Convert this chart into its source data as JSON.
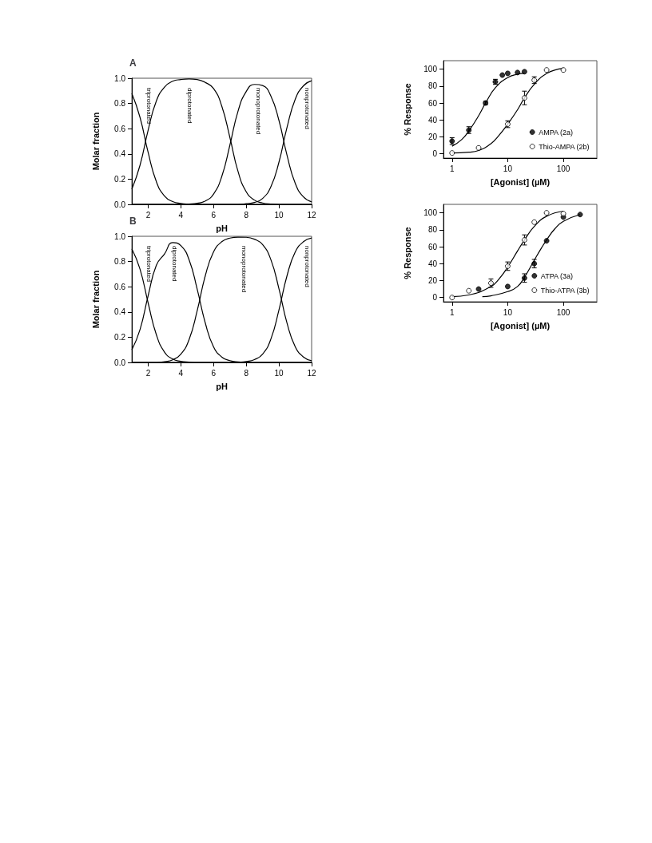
{
  "chart_data": [
    {
      "type": "line",
      "title": "A",
      "xlabel": "pH",
      "ylabel": "Molar fraction",
      "marker": "none",
      "grid": false,
      "legend": false,
      "x": [
        1,
        1.5,
        2,
        2.5,
        3,
        3.5,
        4,
        4.5,
        5,
        5.5,
        6,
        6.5,
        7,
        7.5,
        8,
        8.5,
        9,
        9.5,
        10,
        10.5,
        11,
        11.5,
        12
      ],
      "xlim": [
        1,
        12
      ],
      "xticks": [
        2,
        4,
        6,
        8,
        10,
        12
      ],
      "ylim": [
        0,
        1
      ],
      "yticks": [
        {
          "value": 0,
          "label": "0.0"
        },
        {
          "value": 0.2,
          "label": "0.2"
        },
        {
          "value": 0.4,
          "label": "0.4"
        },
        {
          "value": 0.6,
          "label": "0.6"
        },
        {
          "value": 0.8,
          "label": "0.8"
        },
        {
          "value": 1,
          "label": "1.0"
        }
      ],
      "series": [
        {
          "name": "triprotonated",
          "color": "#000000",
          "values": [
            0.88,
            0.69,
            0.41,
            0.18,
            0.066,
            0.022,
            0.007,
            0.002,
            0,
            0,
            0,
            0,
            0,
            0,
            0,
            0,
            0,
            0,
            0,
            0,
            0,
            0,
            0
          ]
        },
        {
          "name": "diprotonated",
          "color": "#000000",
          "values": [
            0.12,
            0.31,
            0.59,
            0.82,
            0.93,
            0.976,
            0.99,
            0.995,
            0.99,
            0.966,
            0.918,
            0.78,
            0.53,
            0.26,
            0.1,
            0.034,
            0.011,
            0.003,
            0,
            0,
            0,
            0,
            0
          ]
        },
        {
          "name": "monoprotonated",
          "color": "#000000",
          "values": [
            0,
            0,
            0,
            0,
            0,
            0,
            0,
            0.003,
            0.009,
            0.027,
            0.082,
            0.22,
            0.47,
            0.74,
            0.895,
            0.951,
            0.942,
            0.861,
            0.666,
            0.387,
            0.166,
            0.059,
            0.02
          ]
        },
        {
          "name": "nonprotonated",
          "color": "#000000",
          "values": [
            0,
            0,
            0,
            0,
            0,
            0,
            0,
            0,
            0,
            0,
            0,
            0,
            0,
            0,
            0.005,
            0.015,
            0.047,
            0.137,
            0.334,
            0.613,
            0.834,
            0.94,
            0.98
          ]
        }
      ]
    },
    {
      "type": "line",
      "title": "B",
      "xlabel": "pH",
      "ylabel": "Molar fraction",
      "marker": "none",
      "grid": false,
      "legend": false,
      "x": [
        1,
        1.5,
        2,
        2.5,
        3,
        3.5,
        4,
        4.5,
        5,
        5.5,
        6,
        6.5,
        7,
        7.5,
        8,
        8.5,
        9,
        9.5,
        10,
        10.5,
        11,
        11.5,
        12
      ],
      "xlim": [
        1,
        12
      ],
      "xticks": [
        2,
        4,
        6,
        8,
        10,
        12
      ],
      "ylim": [
        0,
        1
      ],
      "yticks": [
        {
          "value": 0,
          "label": "0.0"
        },
        {
          "value": 0.2,
          "label": "0.2"
        },
        {
          "value": 0.4,
          "label": "0.4"
        },
        {
          "value": 0.6,
          "label": "0.6"
        },
        {
          "value": 0.8,
          "label": "0.8"
        },
        {
          "value": 1,
          "label": "1.0"
        }
      ],
      "series": [
        {
          "name": "triprotonated",
          "color": "#000000",
          "values": [
            0.9,
            0.74,
            0.47,
            0.22,
            0.082,
            0.027,
            0.009,
            0.003,
            0,
            0,
            0,
            0,
            0,
            0,
            0,
            0,
            0,
            0,
            0,
            0,
            0,
            0,
            0
          ]
        },
        {
          "name": "diprotonated",
          "color": "#000000",
          "values": [
            0.1,
            0.26,
            0.53,
            0.77,
            0.86,
            0.95,
            0.926,
            0.815,
            0.58,
            0.31,
            0.124,
            0.043,
            0.014,
            0.004,
            0.001,
            0,
            0,
            0,
            0,
            0,
            0,
            0,
            0
          ]
        },
        {
          "name": "monoprotonated",
          "color": "#000000",
          "values": [
            0,
            0,
            0,
            0,
            0.006,
            0.021,
            0.066,
            0.18,
            0.41,
            0.69,
            0.876,
            0.957,
            0.986,
            0.993,
            0.992,
            0.977,
            0.934,
            0.817,
            0.585,
            0.309,
            0.124,
            0.043,
            0.014
          ]
        },
        {
          "name": "nonprotonated",
          "color": "#000000",
          "values": [
            0,
            0,
            0,
            0,
            0,
            0,
            0,
            0,
            0,
            0,
            0,
            0,
            0,
            0.002,
            0.007,
            0.022,
            0.066,
            0.183,
            0.415,
            0.69,
            0.876,
            0.957,
            0.986
          ]
        }
      ]
    },
    {
      "type": "scatter",
      "xlabel": "[Agonist] (µM)",
      "ylabel": "% Response",
      "log": "x",
      "grid": false,
      "legend": "bottom right",
      "xlim": [
        0.7,
        400
      ],
      "xticks": [
        1,
        10,
        100
      ],
      "ylim": [
        -5,
        110
      ],
      "yticks": [
        0,
        20,
        40,
        60,
        80,
        100
      ],
      "series": [
        {
          "name": "AMPA (2a)",
          "color": "#000000",
          "marker": "circle",
          "x": [
            1,
            2,
            4,
            6,
            8,
            10,
            15,
            20
          ],
          "values": [
            15,
            28,
            60,
            85,
            93,
            95,
            96,
            97
          ],
          "errors": [
            4,
            4,
            2,
            3,
            null,
            null,
            null,
            null
          ]
        },
        {
          "name": "Thio-AMPA (2b)",
          "color": "#ffffff",
          "marker": "circle",
          "x": [
            1,
            3,
            10,
            20,
            30,
            50,
            100
          ],
          "values": [
            1,
            7,
            35,
            66,
            87,
            99,
            99
          ],
          "errors": [
            null,
            null,
            4,
            8,
            4,
            null,
            null
          ]
        },
        {
          "type": "line",
          "color": "#000000",
          "x": [
            1,
            1.5,
            2,
            3,
            4,
            6,
            10,
            15,
            20
          ],
          "values": [
            9,
            17,
            27,
            45,
            60,
            78,
            90,
            94,
            95
          ]
        },
        {
          "type": "line",
          "color": "#000000",
          "x": [
            1,
            2,
            3,
            5,
            7,
            10,
            15,
            20,
            30,
            50,
            100
          ],
          "values": [
            1,
            2,
            4,
            12,
            22,
            35,
            52,
            66,
            82,
            95,
            101
          ]
        }
      ]
    },
    {
      "type": "scatter",
      "xlabel": "[Agonist] (µM)",
      "ylabel": "% Response",
      "log": "x",
      "grid": false,
      "legend": "bottom right",
      "xlim": [
        0.7,
        400
      ],
      "xticks": [
        1,
        10,
        100
      ],
      "ylim": [
        -5,
        110
      ],
      "yticks": [
        0,
        20,
        40,
        60,
        80,
        100
      ],
      "series": [
        {
          "name": "ATPA (3a)",
          "color": "#000000",
          "marker": "circle",
          "x": [
            3,
            10,
            20,
            30,
            50,
            100,
            200
          ],
          "values": [
            10,
            13,
            23,
            40,
            67,
            95,
            98
          ],
          "errors": [
            null,
            null,
            5,
            5,
            null,
            null,
            null
          ]
        },
        {
          "name": "Thio-ATPA (3b)",
          "color": "#ffffff",
          "marker": "circle",
          "x": [
            1,
            2,
            5,
            10,
            20,
            30,
            50,
            100
          ],
          "values": [
            0,
            8,
            17,
            37,
            68,
            89,
            100,
            99
          ],
          "errors": [
            null,
            null,
            5,
            5,
            6,
            null,
            null,
            null
          ]
        },
        {
          "type": "line",
          "color": "#000000",
          "x": [
            1,
            2,
            5,
            7,
            10,
            15,
            20,
            30,
            50,
            100
          ],
          "values": [
            1,
            3,
            13,
            22,
            36,
            55,
            68,
            84,
            96,
            102
          ]
        },
        {
          "type": "line",
          "color": "#000000",
          "x": [
            3.5,
            5,
            10,
            15,
            20,
            30,
            40,
            50,
            70,
            100,
            200
          ],
          "values": [
            1,
            2,
            7,
            13,
            24,
            44,
            58,
            68,
            81,
            90,
            98
          ]
        }
      ]
    }
  ]
}
